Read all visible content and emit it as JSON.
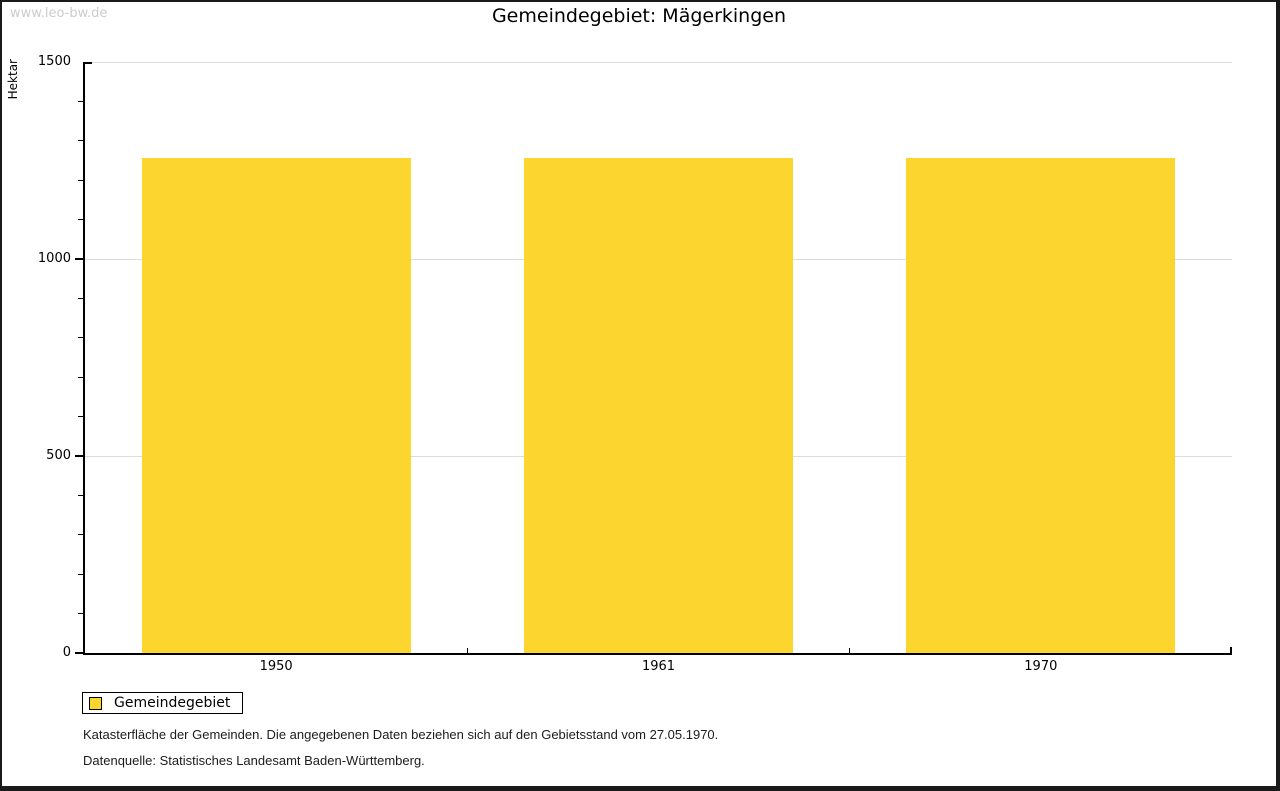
{
  "watermark": "www.leo-bw.de",
  "title": "Gemeindegebiet: Mägerkingen",
  "ylabel": "Hektar",
  "legend": {
    "label": "Gemeindegebiet"
  },
  "footnote1": "Katasterfläche der Gemeinden. Die angegebenen Daten beziehen sich auf den Gebietsstand vom 27.05.1970.",
  "footnote2": "Datenquelle: Statistisches Landesamt Baden-Württemberg.",
  "colors": {
    "bar": "#fcd62e",
    "grid": "#dcdcdc",
    "axis": "#000000",
    "watermark": "#cccccc",
    "frame": "#1a1a1a"
  },
  "chart_data": {
    "type": "bar",
    "categories": [
      "1950",
      "1961",
      "1970"
    ],
    "series": [
      {
        "name": "Gemeindegebiet",
        "values": [
          1257,
          1257,
          1257
        ]
      }
    ],
    "title": "Gemeindegebiet: Mägerkingen",
    "xlabel": "",
    "ylabel": "Hektar",
    "ylim": [
      0,
      1500
    ],
    "yticks": [
      0,
      500,
      1000,
      1500
    ],
    "ytick_major": 500,
    "ytick_minor": 100,
    "grid": true,
    "legend_position": "bottom-left",
    "bar_color": "#fcd62e"
  }
}
